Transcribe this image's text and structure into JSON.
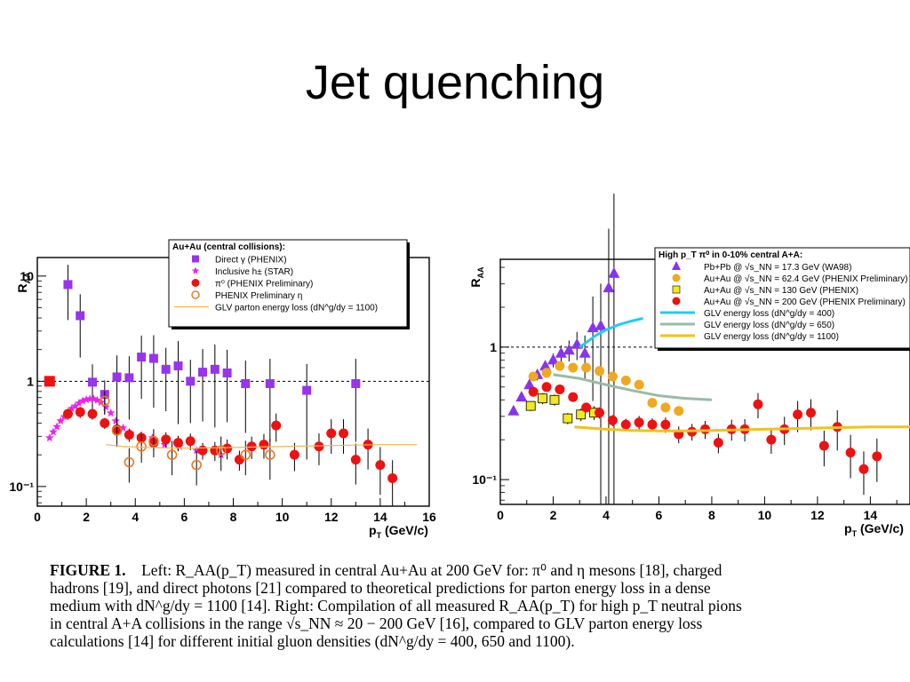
{
  "slide": {
    "title": "Jet quenching"
  },
  "caption": {
    "figure_label": "FIGURE 1.",
    "lines": [
      "Left: R_AA(p_T) measured in central Au+Au at 200 GeV for: π⁰ and η mesons [18], charged",
      "hadrons [19], and direct photons [21] compared to theoretical predictions for parton energy loss in a dense",
      "medium with dN^g/dy = 1100 [14]. Right: Compilation of all measured R_AA(p_T) for high p_T neutral pions",
      "in central A+A collisions in the range √s_NN ≈ 20 − 200 GeV [16], compared to GLV parton energy loss",
      "calculations [14] for different initial gluon densities (dN^g/dy = 400, 650 and 1100)."
    ]
  },
  "chart_data": [
    {
      "type": "scatter",
      "ylabel": "R_AA",
      "xlabel": "p_T (GeV/c)",
      "xlim": [
        0,
        16
      ],
      "ylim": [
        0.065,
        15
      ],
      "yscale": "log",
      "x_ticks": [
        "0",
        "2",
        "4",
        "6",
        "8",
        "10",
        "12",
        "14",
        "16"
      ],
      "y_ticks": [
        {
          "v": 10,
          "label": "10"
        },
        {
          "v": 1,
          "label": "1"
        },
        {
          "v": 0.1,
          "label": "10⁻¹"
        }
      ],
      "reference_line": 1,
      "legend": {
        "title": "Au+Au (central collisions):",
        "entries": [
          "Direct γ (PHENIX)",
          "Inclusive h± (STAR)",
          "π⁰ (PHENIX Preliminary)",
          "PHENIX Preliminary η",
          "GLV parton energy loss (dN^g/dy = 1100)"
        ]
      },
      "series": [
        {
          "name": "Direct γ (PHENIX)",
          "marker": "square",
          "color": "#9933ee",
          "x": [
            1.25,
            1.75,
            2.25,
            2.75,
            3.25,
            3.75,
            4.25,
            4.75,
            5.25,
            5.75,
            6.25,
            6.75,
            7.25,
            7.75,
            8.5,
            9.5,
            11.0,
            13.0
          ],
          "y": [
            8.3,
            4.2,
            0.98,
            0.75,
            1.1,
            1.08,
            1.7,
            1.65,
            1.3,
            1.4,
            1.0,
            1.22,
            1.3,
            1.2,
            0.95,
            0.95,
            0.82,
            0.95
          ],
          "err": [
            0.45,
            0.5,
            0.4,
            0.3,
            0.5,
            0.5,
            0.5,
            0.55,
            0.5,
            0.6,
            0.5,
            0.55,
            0.6,
            0.55,
            0.55,
            0.6,
            0.65,
            0.6
          ]
        },
        {
          "name": "Inclusive h± (STAR)",
          "marker": "star",
          "color": "#ee22ee",
          "x": [
            0.5,
            0.65,
            0.8,
            0.95,
            1.1,
            1.25,
            1.4,
            1.55,
            1.7,
            1.85,
            2.0,
            2.15,
            2.3,
            2.45,
            2.6,
            2.8,
            3.0,
            3.2,
            3.5,
            3.8,
            4.2,
            4.7,
            5.2,
            5.8,
            6.5,
            7.5
          ],
          "y": [
            0.29,
            0.33,
            0.37,
            0.42,
            0.46,
            0.5,
            0.55,
            0.58,
            0.62,
            0.65,
            0.67,
            0.68,
            0.68,
            0.66,
            0.63,
            0.57,
            0.5,
            0.42,
            0.36,
            0.32,
            0.3,
            0.29,
            0.25,
            0.24,
            0.22,
            0.2
          ]
        },
        {
          "name": "π⁰ (PHENIX Preliminary)",
          "marker": "circle",
          "color": "#ee1111",
          "x": [
            1.25,
            1.75,
            2.25,
            2.75,
            3.25,
            3.75,
            4.25,
            4.75,
            5.25,
            5.75,
            6.25,
            6.75,
            7.25,
            7.75,
            8.25,
            8.75,
            9.25,
            9.75,
            10.5,
            11.5,
            12.0,
            12.5,
            13.0,
            13.5,
            14.0,
            14.5
          ],
          "y": [
            0.49,
            0.51,
            0.49,
            0.4,
            0.35,
            0.31,
            0.29,
            0.26,
            0.28,
            0.26,
            0.27,
            0.22,
            0.22,
            0.23,
            0.18,
            0.24,
            0.25,
            0.38,
            0.2,
            0.24,
            0.32,
            0.32,
            0.18,
            0.25,
            0.16,
            0.12
          ],
          "err": [
            0.1,
            0.1,
            0.1,
            0.1,
            0.1,
            0.12,
            0.12,
            0.12,
            0.14,
            0.14,
            0.15,
            0.15,
            0.17,
            0.18,
            0.18,
            0.2,
            0.22,
            0.25,
            0.25,
            0.28,
            0.3,
            0.3,
            0.35,
            0.35,
            0.4,
            0.4
          ]
        },
        {
          "name": "PHENIX Preliminary η",
          "marker": "open-circle",
          "color": "#ee7722",
          "x": [
            2.75,
            3.25,
            3.75,
            4.25,
            4.75,
            5.5,
            6.5,
            7.5,
            8.5,
            9.5
          ],
          "y": [
            0.65,
            0.34,
            0.17,
            0.24,
            0.27,
            0.2,
            0.16,
            0.22,
            0.2,
            0.2
          ],
          "err": [
            0.2,
            0.25,
            0.3,
            0.25,
            0.25,
            0.3,
            0.3,
            0.3,
            0.3,
            0.35
          ]
        },
        {
          "name": "GLV parton energy loss (dN^g/dy = 1100)",
          "marker": "line",
          "color": "#f2b84a",
          "x": [
            2.8,
            3.5,
            4.5,
            5.5,
            6.5,
            8,
            10,
            12,
            14,
            15.5
          ],
          "y": [
            0.25,
            0.24,
            0.235,
            0.232,
            0.232,
            0.235,
            0.24,
            0.245,
            0.25,
            0.25
          ]
        }
      ]
    },
    {
      "type": "scatter",
      "ylabel": "R_AA",
      "xlabel": "p_T (GeV/c)",
      "xlim": [
        0,
        15.5
      ],
      "ylim": [
        0.065,
        4.6
      ],
      "yscale": "log",
      "x_ticks": [
        "0",
        "2",
        "4",
        "6",
        "8",
        "10",
        "12",
        "14"
      ],
      "y_ticks": [
        {
          "v": 1,
          "label": "1"
        },
        {
          "v": 0.1,
          "label": "10⁻¹"
        }
      ],
      "reference_line": 1,
      "legend": {
        "title": "High p_T π⁰ in 0-10% central A+A:",
        "entries": [
          "Pb+Pb @ √s_NN = 17.3 GeV (WA98)",
          "Au+Au @ √s_NN = 62.4 GeV (PHENIX Preliminary)",
          "Au+Au @ √s_NN = 130 GeV  (PHENIX)",
          "Au+Au @ √s_NN = 200 GeV (PHENIX Preliminary)",
          "GLV energy loss (dN^g/dy = 400)",
          "GLV energy loss (dN^g/dy = 650)",
          "GLV energy loss (dN^g/dy = 1100)"
        ]
      },
      "series": [
        {
          "name": "Pb+Pb @ √s_NN = 17.3 GeV (WA98)",
          "marker": "triangle",
          "color": "#8833ee",
          "x": [
            0.5,
            0.8,
            1.1,
            1.4,
            1.7,
            2.0,
            2.3,
            2.6,
            2.9,
            3.2,
            3.5,
            3.8,
            4.1,
            4.3
          ],
          "y": [
            0.33,
            0.42,
            0.52,
            0.62,
            0.72,
            0.8,
            0.9,
            0.95,
            1.05,
            0.9,
            1.4,
            1.45,
            2.8,
            3.6
          ],
          "err": [
            0.05,
            0.05,
            0.07,
            0.08,
            0.08,
            0.1,
            0.12,
            0.15,
            0.2,
            0.3,
            0.6,
            0.9,
            1.5,
            2.5
          ]
        },
        {
          "name": "Au+Au @ √s_NN = 62.4 GeV (PHENIX Preliminary)",
          "marker": "circle",
          "color": "#f0a820",
          "x": [
            1.25,
            1.75,
            2.25,
            2.75,
            3.25,
            3.75,
            4.25,
            4.75,
            5.25,
            5.75,
            6.25,
            6.75
          ],
          "y": [
            0.6,
            0.64,
            0.72,
            0.7,
            0.7,
            0.66,
            0.6,
            0.56,
            0.52,
            0.38,
            0.35,
            0.33
          ],
          "err": [
            0.05,
            0.05,
            0.06,
            0.06,
            0.06,
            0.06,
            0.06,
            0.06,
            0.06,
            0.06,
            0.06,
            0.06
          ]
        },
        {
          "name": "Au+Au @ √s_NN = 130 GeV  (PHENIX)",
          "marker": "square",
          "color": "#f2ea1a",
          "x": [
            1.15,
            1.6,
            2.05,
            2.55,
            3.05,
            3.55
          ],
          "y": [
            0.36,
            0.41,
            0.4,
            0.29,
            0.31,
            0.32
          ],
          "err": [
            0.07,
            0.08,
            0.08,
            0.08,
            0.09,
            0.1
          ]
        },
        {
          "name": "Au+Au @ √s_NN = 200 GeV (PHENIX Preliminary)",
          "marker": "circle",
          "color": "#ee1111",
          "x": [
            1.25,
            1.75,
            2.25,
            2.75,
            3.25,
            3.75,
            4.25,
            4.75,
            5.25,
            5.75,
            6.25,
            6.75,
            7.25,
            7.75,
            8.25,
            8.75,
            9.25,
            9.75,
            10.25,
            10.75,
            11.25,
            11.75,
            12.25,
            12.75,
            13.25,
            13.75,
            14.25
          ],
          "y": [
            0.46,
            0.5,
            0.48,
            0.42,
            0.35,
            0.32,
            0.28,
            0.26,
            0.27,
            0.26,
            0.26,
            0.22,
            0.23,
            0.24,
            0.19,
            0.24,
            0.24,
            0.37,
            0.2,
            0.24,
            0.31,
            0.32,
            0.18,
            0.25,
            0.16,
            0.12,
            0.15
          ],
          "err": [
            0.05,
            0.05,
            0.06,
            0.06,
            0.07,
            0.08,
            0.08,
            0.09,
            0.1,
            0.1,
            0.11,
            0.12,
            0.12,
            0.13,
            0.14,
            0.15,
            0.16,
            0.18,
            0.18,
            0.2,
            0.22,
            0.22,
            0.25,
            0.28,
            0.3,
            0.3,
            0.3
          ]
        },
        {
          "name": "GLV energy loss (dN^g/dy = 400)",
          "marker": "line",
          "color": "#22ccee",
          "x": [
            3.0,
            3.3,
            3.6,
            4.0,
            4.5,
            5.0,
            5.4
          ],
          "y": [
            1.0,
            1.1,
            1.22,
            1.35,
            1.48,
            1.58,
            1.65
          ]
        },
        {
          "name": "GLV energy loss (dN^g/dy = 650)",
          "marker": "line",
          "color": "#99bbaa",
          "x": [
            2.0,
            3.0,
            4.0,
            5.0,
            6.0,
            7.0,
            8.0
          ],
          "y": [
            0.62,
            0.58,
            0.52,
            0.47,
            0.43,
            0.41,
            0.4
          ]
        },
        {
          "name": "GLV energy loss (dN^g/dy = 1100)",
          "marker": "line",
          "color": "#f2c21a",
          "x": [
            2.8,
            4,
            5,
            6,
            7,
            8,
            10,
            12,
            14,
            15.5
          ],
          "y": [
            0.25,
            0.24,
            0.235,
            0.233,
            0.233,
            0.235,
            0.24,
            0.245,
            0.25,
            0.25
          ]
        }
      ]
    }
  ]
}
